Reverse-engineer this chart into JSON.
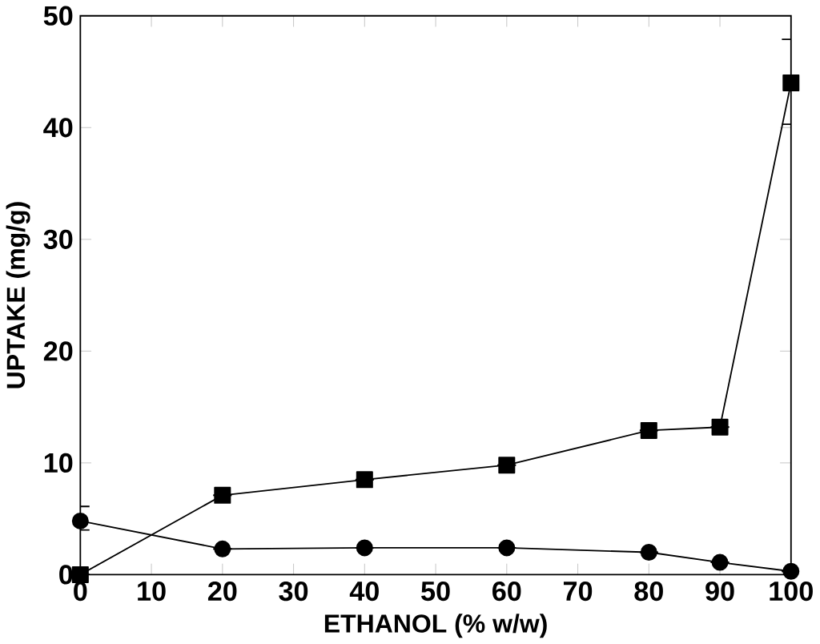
{
  "chart_data": {
    "type": "line",
    "xlabel": "ETHANOL (% w/w)",
    "ylabel": "UPTAKE (mg/g)",
    "x": [
      0,
      20,
      40,
      60,
      80,
      90,
      100
    ],
    "series": [
      {
        "color": "#000000",
        "marker": "square",
        "values": [
          0,
          7.1,
          8.5,
          9.8,
          12.9,
          13.2,
          44
        ],
        "errors": [
          null,
          null,
          null,
          null,
          null,
          null,
          [
            40.3,
            47.9
          ]
        ]
      },
      {
        "color": "#000000",
        "marker": "circle",
        "values": [
          4.8,
          2.3,
          2.4,
          2.4,
          2.0,
          1.1,
          0.3
        ],
        "errors": [
          [
            4.0,
            6.1
          ],
          null,
          null,
          null,
          null,
          null,
          null
        ]
      }
    ],
    "xlim": [
      0,
      100
    ],
    "xticks": [
      0,
      10,
      20,
      30,
      40,
      50,
      60,
      70,
      80,
      90,
      100
    ],
    "ylim": [
      0,
      50
    ],
    "yticks": [
      0,
      10,
      20,
      30,
      40,
      50
    ],
    "grid": false
  }
}
